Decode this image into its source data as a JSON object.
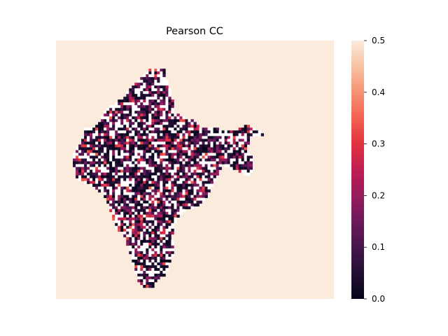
{
  "chart_data": {
    "type": "heatmap",
    "title": "Pearson CC",
    "xlabel": "",
    "ylabel": "",
    "background_value": 0.5,
    "missing_color": "#ffffff",
    "colormap": "rocket",
    "colorbar": {
      "vmin": 0.0,
      "vmax": 0.5,
      "ticks": [
        0.0,
        0.1,
        0.2,
        0.3,
        0.4,
        0.5
      ],
      "tick_labels": [
        "0.0",
        "0.1",
        "0.2",
        "0.3",
        "0.4",
        "0.5"
      ],
      "placement": "right"
    },
    "colors": {
      "low": "#03051a",
      "mid": "#a11a5b",
      "high": "#faebdd"
    },
    "region": "India",
    "grid_columns": 99,
    "grid_rows": 92,
    "value_distribution": "most land cells between 0.0 and 0.25, scattered cells up to about 0.35, many land cells missing (white); all cells outside the land area at 0.5"
  }
}
